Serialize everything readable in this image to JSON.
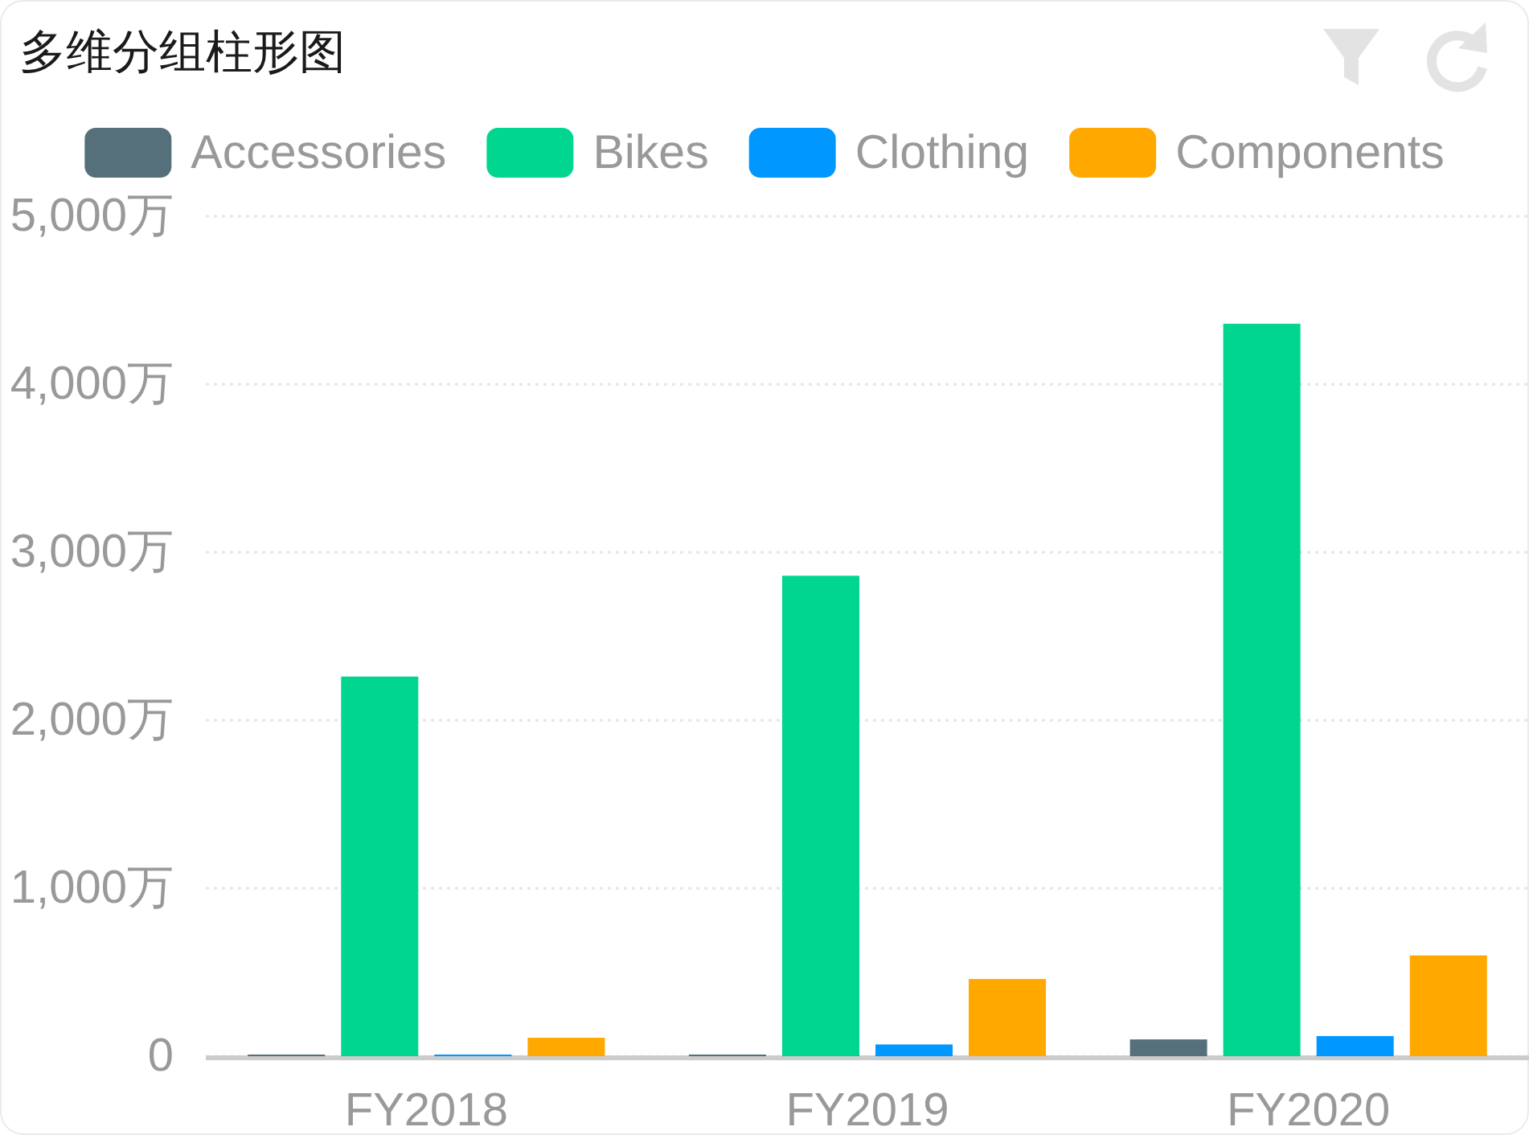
{
  "chart_data": {
    "type": "bar",
    "title": "多维分组柱形图",
    "categories": [
      "FY2018",
      "FY2019",
      "FY2020"
    ],
    "series": [
      {
        "name": "Accessories",
        "color": "#56707b",
        "values": [
          10,
          10,
          100
        ]
      },
      {
        "name": "Bikes",
        "color": "#00d68f",
        "values": [
          2260,
          2860,
          4360
        ]
      },
      {
        "name": "Clothing",
        "color": "#0098ff",
        "values": [
          10,
          70,
          120
        ]
      },
      {
        "name": "Components",
        "color": "#ffa900",
        "values": [
          110,
          460,
          600
        ]
      }
    ],
    "ylim": [
      0,
      5000
    ],
    "yticks": [
      0,
      {
        "value": 1000,
        "label": "1,000万"
      },
      {
        "value": 2000,
        "label": "2,000万"
      },
      {
        "value": 3000,
        "label": "3,000万"
      },
      {
        "value": 4000,
        "label": "4,000万"
      },
      {
        "value": 5000,
        "label": "5,000万"
      }
    ],
    "grid": "y",
    "legend": "top"
  }
}
